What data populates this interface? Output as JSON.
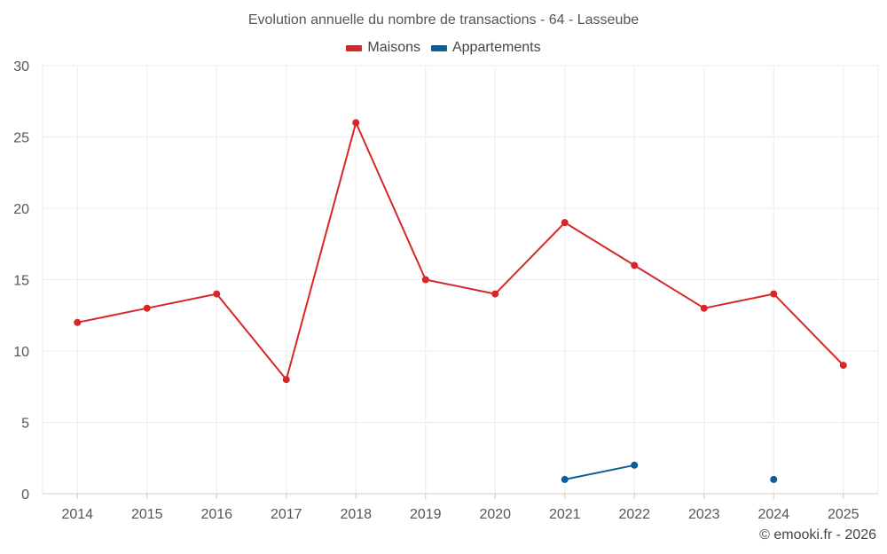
{
  "chart_data": {
    "type": "line",
    "title": "Evolution annuelle du nombre de transactions - 64 - Lasseube",
    "categories": [
      "2014",
      "2015",
      "2016",
      "2017",
      "2018",
      "2019",
      "2020",
      "2021",
      "2022",
      "2023",
      "2024",
      "2025"
    ],
    "series": [
      {
        "name": "Maisons",
        "color": "#d62728",
        "values": [
          12,
          13,
          14,
          8,
          26,
          15,
          14,
          19,
          16,
          13,
          14,
          9
        ]
      },
      {
        "name": "Appartements",
        "color": "#0a5e99",
        "values": [
          null,
          null,
          null,
          null,
          null,
          null,
          null,
          1,
          2,
          null,
          1,
          null
        ]
      }
    ],
    "ylim": [
      0,
      30
    ],
    "yticks": [
      0,
      5,
      10,
      15,
      20,
      25,
      30
    ],
    "grid": true,
    "legend_position": "top-center",
    "xlabel": "",
    "ylabel": ""
  },
  "credit": "© emooki.fr - 2026"
}
